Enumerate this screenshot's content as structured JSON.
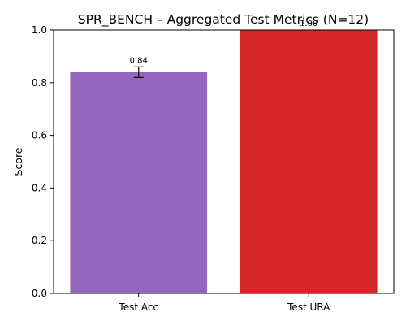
{
  "chart_data": {
    "type": "bar",
    "title": "SPR_BENCH – Aggregated Test Metrics (N=12)",
    "xlabel": "",
    "ylabel": "Score",
    "ylim": [
      0,
      1.0
    ],
    "yticks": [
      "0.0",
      "0.2",
      "0.4",
      "0.6",
      "0.8",
      "1.0"
    ],
    "categories": [
      "Test Acc",
      "Test URA"
    ],
    "values": [
      0.84,
      1.0
    ],
    "errors": [
      0.02,
      0.0
    ],
    "data_labels": [
      "0.84",
      "1.00"
    ],
    "colors": [
      "#9467bd",
      "#d62728"
    ],
    "grid": false,
    "legend": "none"
  }
}
